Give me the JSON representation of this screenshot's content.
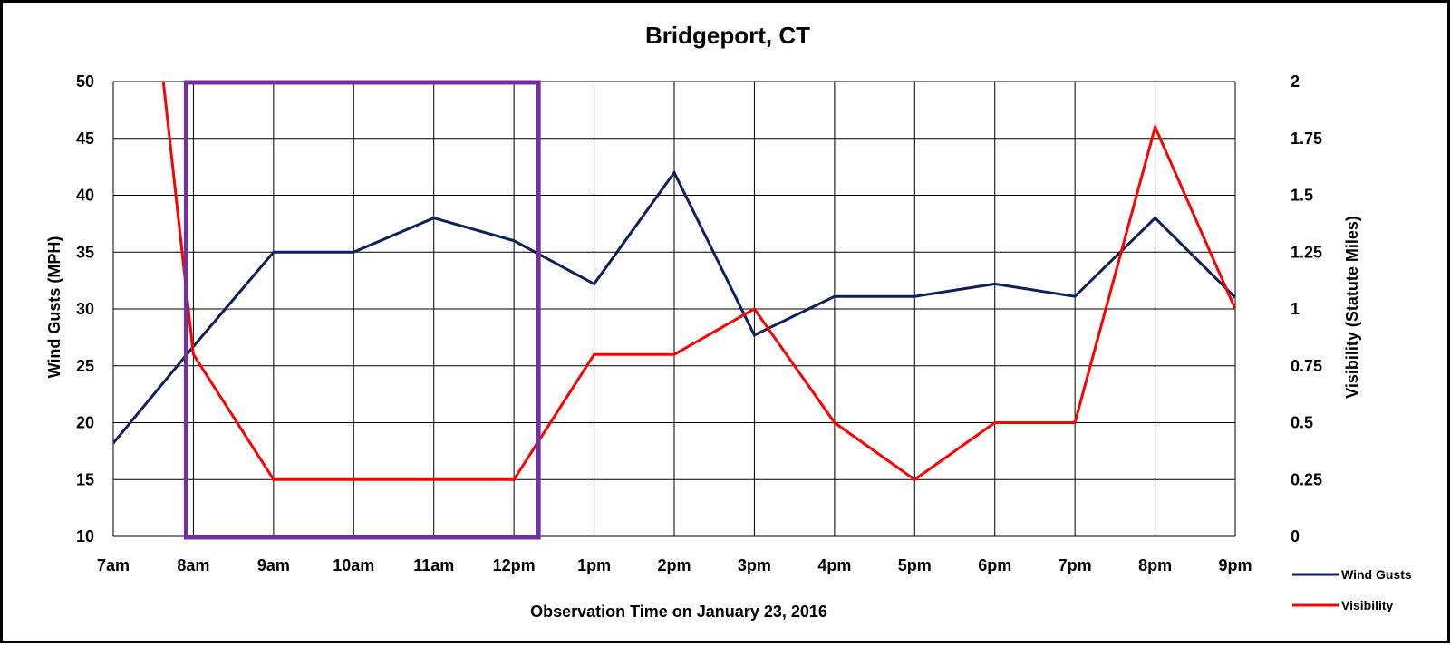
{
  "chart_data": {
    "type": "line",
    "title": "Bridgeport, CT",
    "xlabel": "Observation Time on January 23, 2016",
    "ylabel_left": "Wind Gusts (MPH)",
    "ylabel_right": "Visibility (Statute Miles)",
    "categories": [
      "7am",
      "8am",
      "9am",
      "10am",
      "11am",
      "12pm",
      "1pm",
      "2pm",
      "3pm",
      "4pm",
      "5pm",
      "6pm",
      "7pm",
      "8pm",
      "9pm"
    ],
    "y_left": {
      "range": [
        10,
        50
      ],
      "ticks": [
        "10",
        "15",
        "20",
        "25",
        "30",
        "35",
        "40",
        "45",
        "50"
      ]
    },
    "y_right": {
      "range": [
        0,
        2
      ],
      "ticks": [
        "0",
        "0.25",
        "0.5",
        "0.75",
        "1",
        "1.25",
        "1.5",
        "1.75",
        "2"
      ]
    },
    "grid": true,
    "legend_position": "bottom-right",
    "series": [
      {
        "name": "Wind Gusts",
        "axis": "left",
        "color": "#0d1f5c",
        "values": [
          18.2,
          26.7,
          35,
          35,
          38,
          36,
          32.2,
          42,
          27.7,
          31.1,
          31.1,
          32.2,
          31.1,
          38,
          31
        ]
      },
      {
        "name": "Visibility",
        "axis": "right",
        "color": "#ff0000",
        "values": [
          4,
          0.8,
          0.25,
          0.25,
          0.25,
          0.25,
          0.8,
          0.8,
          1,
          0.5,
          0.25,
          0.5,
          0.5,
          1.8,
          1
        ]
      }
    ],
    "annotations": [
      {
        "type": "highlight-box",
        "color": "#7030a0",
        "from_category": "8am",
        "to_category": "12pm"
      }
    ]
  }
}
